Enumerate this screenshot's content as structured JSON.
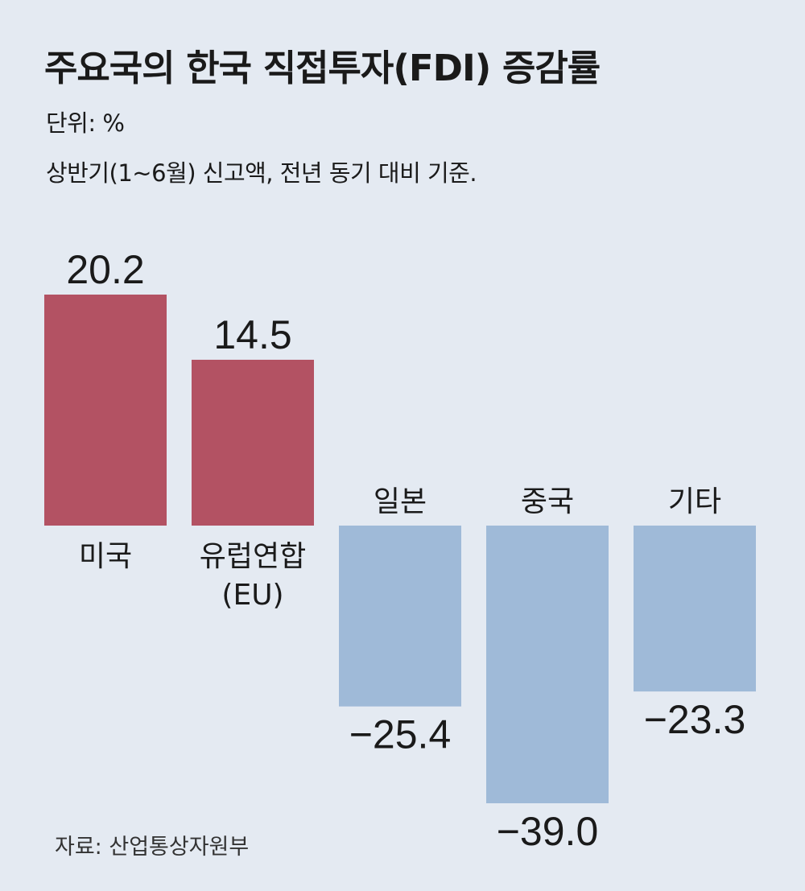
{
  "chart_data": {
    "type": "bar",
    "title": "주요국의 한국 직접투자(FDI) 증감률",
    "subtitle": [
      "단위: %",
      "상반기(1~6월) 신고액, 전년 동기 대비 기준."
    ],
    "categories": [
      [
        "미국"
      ],
      [
        "유럽연합",
        "(EU)"
      ],
      [
        "일본"
      ],
      [
        "중국"
      ],
      [
        "기타"
      ]
    ],
    "values": [
      20.2,
      14.5,
      -25.4,
      -39.0,
      -23.3
    ],
    "value_labels": [
      "20.2",
      "14.5",
      "−25.4",
      "−39.0",
      "−23.3"
    ],
    "colors": {
      "positive": "#b35263",
      "negative": "#9fbad8"
    },
    "source": "자료: 산업통상자원부",
    "xlabel": "",
    "ylabel": "",
    "grid": false
  }
}
